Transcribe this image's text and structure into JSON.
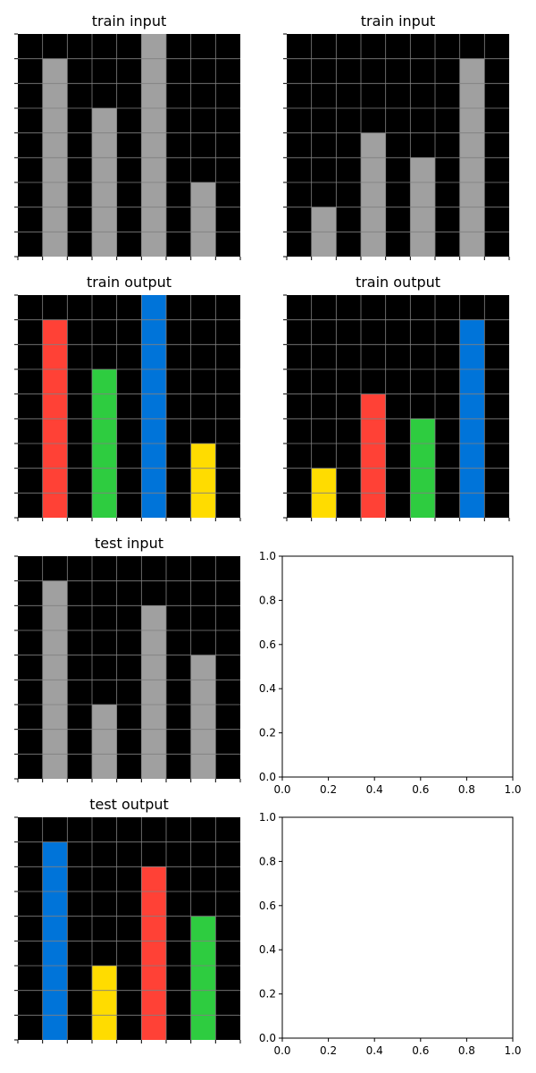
{
  "colors": {
    "background": "#000000",
    "gray": "#a0a0a0",
    "red": "#ff4136",
    "green": "#2ecc40",
    "blue": "#0074d9",
    "yellow": "#ffdc00",
    "gridline": "#808080"
  },
  "grid": {
    "rows": 9,
    "cols": 9
  },
  "panels": [
    {
      "title": "train input",
      "bars": [
        {
          "col": 1,
          "height": 8,
          "color": "gray"
        },
        {
          "col": 3,
          "height": 6,
          "color": "gray"
        },
        {
          "col": 5,
          "height": 9,
          "color": "gray"
        },
        {
          "col": 7,
          "height": 3,
          "color": "gray"
        }
      ]
    },
    {
      "title": "train input",
      "bars": [
        {
          "col": 1,
          "height": 2,
          "color": "gray"
        },
        {
          "col": 3,
          "height": 5,
          "color": "gray"
        },
        {
          "col": 5,
          "height": 4,
          "color": "gray"
        },
        {
          "col": 7,
          "height": 8,
          "color": "gray"
        }
      ]
    },
    {
      "title": "train output",
      "bars": [
        {
          "col": 1,
          "height": 8,
          "color": "red"
        },
        {
          "col": 3,
          "height": 6,
          "color": "green"
        },
        {
          "col": 5,
          "height": 9,
          "color": "blue"
        },
        {
          "col": 7,
          "height": 3,
          "color": "yellow"
        }
      ]
    },
    {
      "title": "train output",
      "bars": [
        {
          "col": 1,
          "height": 2,
          "color": "yellow"
        },
        {
          "col": 3,
          "height": 5,
          "color": "red"
        },
        {
          "col": 5,
          "height": 4,
          "color": "green"
        },
        {
          "col": 7,
          "height": 8,
          "color": "blue"
        }
      ]
    },
    {
      "title": "test input",
      "bars": [
        {
          "col": 1,
          "height": 8,
          "color": "gray"
        },
        {
          "col": 3,
          "height": 3,
          "color": "gray"
        },
        {
          "col": 5,
          "height": 7,
          "color": "gray"
        },
        {
          "col": 7,
          "height": 5,
          "color": "gray"
        }
      ]
    },
    {
      "title": "test output",
      "bars": [
        {
          "col": 1,
          "height": 8,
          "color": "blue"
        },
        {
          "col": 3,
          "height": 3,
          "color": "yellow"
        },
        {
          "col": 5,
          "height": 7,
          "color": "red"
        },
        {
          "col": 7,
          "height": 5,
          "color": "green"
        }
      ]
    }
  ],
  "empty_axes": {
    "xlim": [
      0.0,
      1.0
    ],
    "ylim": [
      0.0,
      1.0
    ],
    "tick_labels": [
      "0.0",
      "0.2",
      "0.4",
      "0.6",
      "0.8",
      "1.0"
    ]
  }
}
